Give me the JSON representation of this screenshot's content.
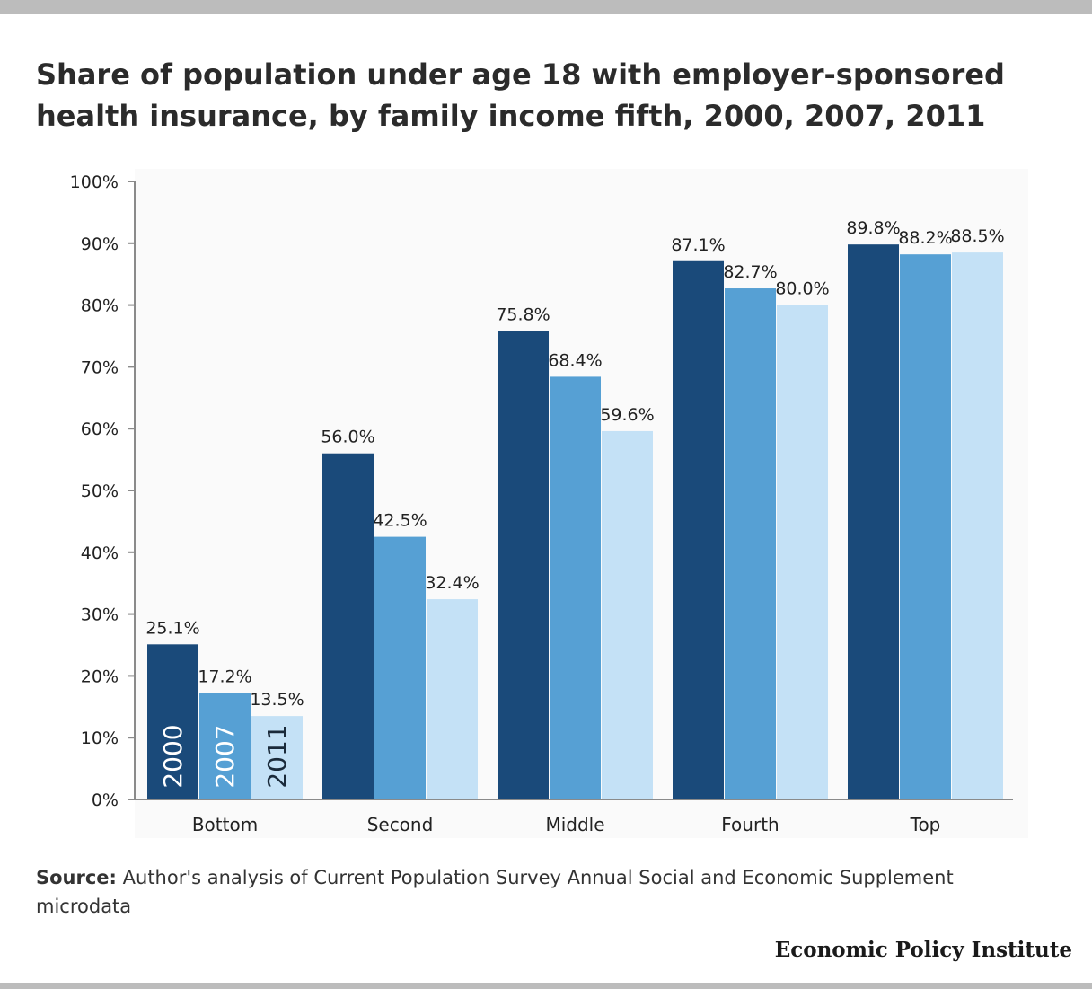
{
  "title": "Share of population under age 18 with employer-sponsored health insurance, by family income fifth, 2000, 2007, 2011",
  "source": {
    "label": "Source:",
    "text": "Author's analysis of Current Population Survey Annual Social and Economic Supplement microdata"
  },
  "brand": "Economic Policy Institute",
  "colors": {
    "s2000": "#1a4a7a",
    "s2007": "#56a0d4",
    "s2011": "#c4e1f6",
    "axis": "#8a8a8a",
    "plot_bg": "#fafafa"
  },
  "chart_data": {
    "type": "bar",
    "title": "Share of population under age 18 with employer-sponsored health insurance, by family income fifth, 2000, 2007, 2011",
    "categories": [
      "Bottom",
      "Second",
      "Middle",
      "Fourth",
      "Top"
    ],
    "series": [
      {
        "name": "2000",
        "values": [
          25.1,
          56.0,
          75.8,
          87.1,
          89.8
        ],
        "labels": [
          "25.1%",
          "56.0%",
          "75.8%",
          "87.1%",
          "89.8%"
        ]
      },
      {
        "name": "2007",
        "values": [
          17.2,
          42.5,
          68.4,
          82.7,
          88.2
        ],
        "labels": [
          "17.2%",
          "42.5%",
          "68.4%",
          "82.7%",
          "88.2%"
        ]
      },
      {
        "name": "2011",
        "values": [
          13.5,
          32.4,
          59.6,
          80.0,
          88.5
        ],
        "labels": [
          "13.5%",
          "32.4%",
          "59.6%",
          "80.0%",
          "88.5%"
        ]
      }
    ],
    "ylim": [
      0,
      100
    ],
    "yticks": [
      "0%",
      "10%",
      "20%",
      "30%",
      "40%",
      "50%",
      "60%",
      "70%",
      "80%",
      "90%",
      "100%"
    ],
    "legend": "inside bars of first group (rotated year labels)",
    "grid": false
  }
}
